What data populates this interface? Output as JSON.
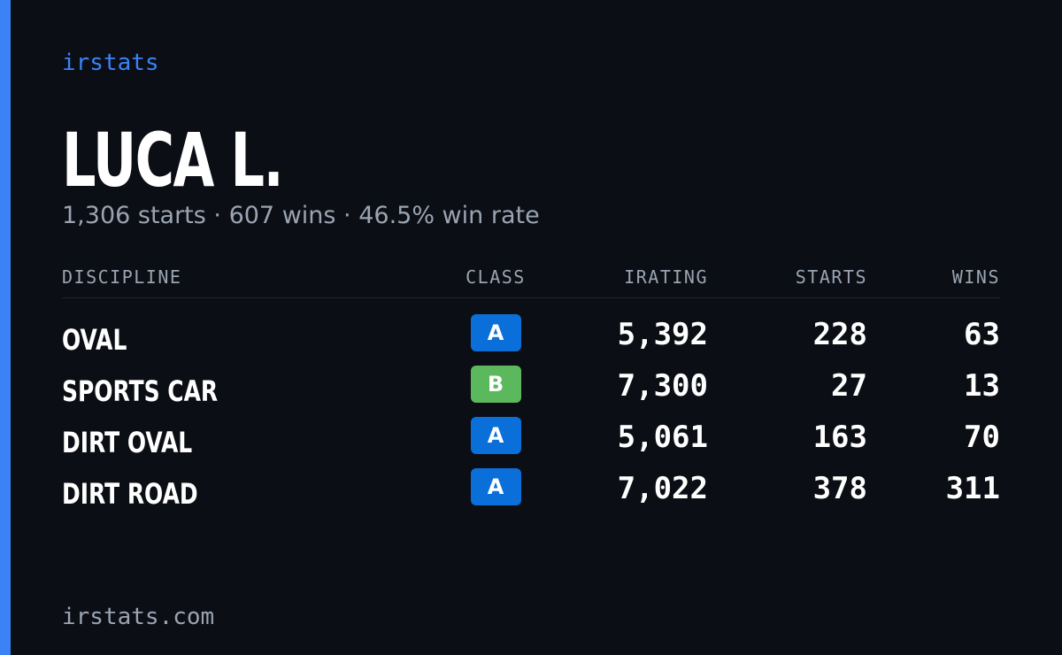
{
  "brand": "irstats",
  "profile": {
    "name": "LUCA L.",
    "summary": "1,306 starts · 607 wins · 46.5% win rate"
  },
  "table": {
    "headers": [
      "DISCIPLINE",
      "CLASS",
      "IRATING",
      "STARTS",
      "WINS"
    ],
    "rows": [
      {
        "discipline": "OVAL",
        "class": "A",
        "class_color": "#0a6fd8",
        "irating": "5,392",
        "starts": "228",
        "wins": "63"
      },
      {
        "discipline": "SPORTS CAR",
        "class": "B",
        "class_color": "#5cb85c",
        "irating": "7,300",
        "starts": "27",
        "wins": "13"
      },
      {
        "discipline": "DIRT OVAL",
        "class": "A",
        "class_color": "#0a6fd8",
        "irating": "5,061",
        "starts": "163",
        "wins": "70"
      },
      {
        "discipline": "DIRT ROAD",
        "class": "A",
        "class_color": "#0a6fd8",
        "irating": "7,022",
        "starts": "378",
        "wins": "311"
      }
    ]
  },
  "footer": "irstats.com"
}
